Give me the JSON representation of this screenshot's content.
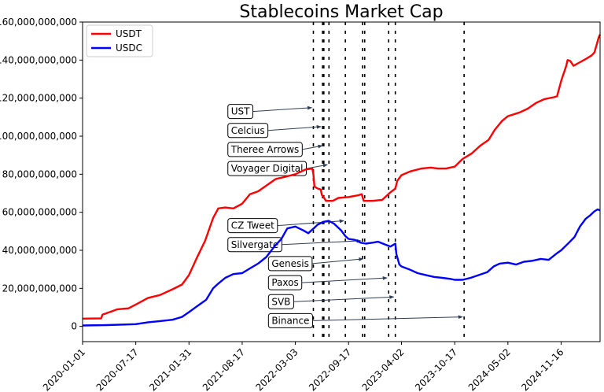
{
  "chart_data": {
    "type": "line",
    "title": "Stablecoins Market Cap",
    "xlabel": "",
    "ylabel": "",
    "x_range": [
      "2020-01-01",
      "2025-04-10"
    ],
    "ylim": [
      -8000000000,
      160000000000
    ],
    "y_ticks": [
      0,
      20000000000,
      40000000000,
      60000000000,
      80000000000,
      100000000000,
      120000000000,
      140000000000,
      160000000000
    ],
    "y_tick_labels": [
      "0",
      "20,000,000,000",
      "40,000,000,000",
      "60,000,000,000",
      "80,000,000,000",
      "100,000,000,000",
      "120,000,000,000",
      "140,000,000,000",
      "160,000,000,000"
    ],
    "x_ticks": [
      "2020-01-01",
      "2020-07-17",
      "2021-01-31",
      "2021-08-17",
      "2022-03-03",
      "2022-09-17",
      "2023-04-02",
      "2023-10-17",
      "2024-05-02",
      "2024-11-16"
    ],
    "legend": {
      "placement": "top-left"
    },
    "grid": false,
    "series": [
      {
        "name": "USDT",
        "color": "#ff0000",
        "points": [
          [
            "2020-01-01",
            4100000000.0
          ],
          [
            "2020-03-10",
            4200000000.0
          ],
          [
            "2020-03-15",
            6200000000.0
          ],
          [
            "2020-05-10",
            9000000000.0
          ],
          [
            "2020-06-20",
            9500000000.0
          ],
          [
            "2020-07-17",
            11500000000.0
          ],
          [
            "2020-09-01",
            15000000000.0
          ],
          [
            "2020-10-15",
            16500000000.0
          ],
          [
            "2020-12-01",
            19500000000.0
          ],
          [
            "2021-01-05",
            22000000000.0
          ],
          [
            "2021-01-31",
            27000000000.0
          ],
          [
            "2021-03-01",
            36000000000.0
          ],
          [
            "2021-04-01",
            45000000000.0
          ],
          [
            "2021-05-01",
            57000000000.0
          ],
          [
            "2021-05-20",
            62000000000.0
          ],
          [
            "2021-06-15",
            62500000000.0
          ],
          [
            "2021-07-15",
            62000000000.0
          ],
          [
            "2021-08-17",
            64500000000.0
          ],
          [
            "2021-09-15",
            69500000000.0
          ],
          [
            "2021-10-15",
            71000000000.0
          ],
          [
            "2021-11-15",
            74000000000.0
          ],
          [
            "2021-12-20",
            77500000000.0
          ],
          [
            "2022-01-20",
            78500000000.0
          ],
          [
            "2022-03-03",
            80000000000.0
          ],
          [
            "2022-04-10",
            82500000000.0
          ],
          [
            "2022-05-05",
            83000000000.0
          ],
          [
            "2022-05-09",
            80000000000.0
          ],
          [
            "2022-05-13",
            73500000000.0
          ],
          [
            "2022-05-25",
            72500000000.0
          ],
          [
            "2022-06-05",
            72000000000.0
          ],
          [
            "2022-06-10",
            69000000000.0
          ],
          [
            "2022-06-18",
            67500000000.0
          ],
          [
            "2022-06-25",
            66000000000.0
          ],
          [
            "2022-07-20",
            66000000000.0
          ],
          [
            "2022-08-10",
            67500000000.0
          ],
          [
            "2022-09-17",
            68000000000.0
          ],
          [
            "2022-10-25",
            69000000000.0
          ],
          [
            "2022-11-05",
            69500000000.0
          ],
          [
            "2022-11-12",
            66000000000.0
          ],
          [
            "2022-12-15",
            66000000000.0
          ],
          [
            "2023-01-20",
            66500000000.0
          ],
          [
            "2023-02-20",
            70500000000.0
          ],
          [
            "2023-03-10",
            72500000000.0
          ],
          [
            "2023-03-17",
            76500000000.0
          ],
          [
            "2023-04-02",
            79500000000.0
          ],
          [
            "2023-05-05",
            81500000000.0
          ],
          [
            "2023-06-15",
            83000000000.0
          ],
          [
            "2023-07-20",
            83500000000.0
          ],
          [
            "2023-08-15",
            83000000000.0
          ],
          [
            "2023-09-15",
            83000000000.0
          ],
          [
            "2023-10-17",
            84000000000.0
          ],
          [
            "2023-11-15",
            88000000000.0
          ],
          [
            "2023-12-20",
            91000000000.0
          ],
          [
            "2024-01-20",
            95000000000.0
          ],
          [
            "2024-02-20",
            98000000000.0
          ],
          [
            "2024-03-15",
            103500000000.0
          ],
          [
            "2024-04-10",
            108000000000.0
          ],
          [
            "2024-05-02",
            110500000000.0
          ],
          [
            "2024-06-15",
            112500000000.0
          ],
          [
            "2024-07-15",
            114500000000.0
          ],
          [
            "2024-08-15",
            117500000000.0
          ],
          [
            "2024-09-15",
            119500000000.0
          ],
          [
            "2024-10-20",
            120500000000.0
          ],
          [
            "2024-11-01",
            121000000000.0
          ],
          [
            "2024-11-16",
            129000000000.0
          ],
          [
            "2024-12-05",
            137000000000.0
          ],
          [
            "2024-12-10",
            140000000000.0
          ],
          [
            "2024-12-20",
            139500000000.0
          ],
          [
            "2025-01-01",
            137000000000.0
          ],
          [
            "2025-01-20",
            138500000000.0
          ],
          [
            "2025-02-15",
            140500000000.0
          ],
          [
            "2025-03-10",
            142500000000.0
          ],
          [
            "2025-03-20",
            144000000000.0
          ],
          [
            "2025-03-28",
            148000000000.0
          ],
          [
            "2025-04-05",
            152000000000.0
          ],
          [
            "2025-04-10",
            153500000000.0
          ]
        ]
      },
      {
        "name": "USDC",
        "color": "#0000ff",
        "points": [
          [
            "2020-01-01",
            500000000.0
          ],
          [
            "2020-04-01",
            700000000.0
          ],
          [
            "2020-07-17",
            1200000000.0
          ],
          [
            "2020-09-01",
            2200000000.0
          ],
          [
            "2020-10-15",
            2800000000.0
          ],
          [
            "2020-12-01",
            3500000000.0
          ],
          [
            "2021-01-05",
            5000000000.0
          ],
          [
            "2021-01-31",
            7500000000.0
          ],
          [
            "2021-03-01",
            10500000000.0
          ],
          [
            "2021-04-05",
            14000000000.0
          ],
          [
            "2021-05-01",
            20000000000.0
          ],
          [
            "2021-05-20",
            22500000000.0
          ],
          [
            "2021-06-15",
            25500000000.0
          ],
          [
            "2021-07-15",
            27500000000.0
          ],
          [
            "2021-08-17",
            28000000000.0
          ],
          [
            "2021-09-15",
            30500000000.0
          ],
          [
            "2021-10-15",
            33000000000.0
          ],
          [
            "2021-11-15",
            36500000000.0
          ],
          [
            "2021-12-15",
            42000000000.0
          ],
          [
            "2022-01-10",
            46000000000.0
          ],
          [
            "2022-02-01",
            51500000000.0
          ],
          [
            "2022-03-03",
            52500000000.0
          ],
          [
            "2022-04-01",
            50500000000.0
          ],
          [
            "2022-04-20",
            49000000000.0
          ],
          [
            "2022-05-10",
            51500000000.0
          ],
          [
            "2022-05-25",
            53500000000.0
          ],
          [
            "2022-06-15",
            55000000000.0
          ],
          [
            "2022-07-05",
            55500000000.0
          ],
          [
            "2022-07-25",
            54000000000.0
          ],
          [
            "2022-08-20",
            50500000000.0
          ],
          [
            "2022-09-05",
            47500000000.0
          ],
          [
            "2022-09-17",
            46000000000.0
          ],
          [
            "2022-10-10",
            45500000000.0
          ],
          [
            "2022-11-01",
            44000000000.0
          ],
          [
            "2022-11-20",
            43500000000.0
          ],
          [
            "2022-12-15",
            44000000000.0
          ],
          [
            "2023-01-05",
            44500000000.0
          ],
          [
            "2023-02-01",
            43000000000.0
          ],
          [
            "2023-02-20",
            42000000000.0
          ],
          [
            "2023-03-10",
            43500000000.0
          ],
          [
            "2023-03-14",
            38000000000.0
          ],
          [
            "2023-03-25",
            32500000000.0
          ],
          [
            "2023-04-02",
            31500000000.0
          ],
          [
            "2023-05-01",
            30000000000.0
          ],
          [
            "2023-06-01",
            28000000000.0
          ],
          [
            "2023-07-01",
            27000000000.0
          ],
          [
            "2023-08-01",
            26000000000.0
          ],
          [
            "2023-09-01",
            25500000000.0
          ],
          [
            "2023-10-01",
            25000000000.0
          ],
          [
            "2023-10-17",
            24500000000.0
          ],
          [
            "2023-11-15",
            24500000000.0
          ],
          [
            "2023-12-15",
            25500000000.0
          ],
          [
            "2024-01-15",
            27000000000.0
          ],
          [
            "2024-02-15",
            28500000000.0
          ],
          [
            "2024-03-10",
            31500000000.0
          ],
          [
            "2024-04-01",
            33000000000.0
          ],
          [
            "2024-05-02",
            33500000000.0
          ],
          [
            "2024-06-01",
            32500000000.0
          ],
          [
            "2024-07-01",
            34000000000.0
          ],
          [
            "2024-08-01",
            34500000000.0
          ],
          [
            "2024-09-01",
            35500000000.0
          ],
          [
            "2024-10-01",
            35000000000.0
          ],
          [
            "2024-11-01",
            38500000000.0
          ],
          [
            "2024-11-16",
            40000000000.0
          ],
          [
            "2024-12-15",
            44000000000.0
          ],
          [
            "2025-01-05",
            47000000000.0
          ],
          [
            "2025-01-25",
            52500000000.0
          ],
          [
            "2025-02-15",
            56500000000.0
          ],
          [
            "2025-03-05",
            58500000000.0
          ],
          [
            "2025-03-20",
            60500000000.0
          ],
          [
            "2025-04-01",
            61500000000.0
          ],
          [
            "2025-04-10",
            61000000000.0
          ]
        ]
      }
    ],
    "events": [
      {
        "label": "UST",
        "date": "2022-05-09",
        "label_y": 113000000000,
        "arrow_y": 115000000000
      },
      {
        "label": "Celcius",
        "date": "2022-06-12",
        "label_y": 103000000000,
        "arrow_y": 105000000000
      },
      {
        "label": "Theree Arrows",
        "date": "2022-06-17",
        "label_y": 93000000000,
        "arrow_y": 95000000000
      },
      {
        "label": "Voyager Digital",
        "date": "2022-07-06",
        "label_y": 83000000000,
        "arrow_y": 85000000000
      },
      {
        "label": "CZ Tweet",
        "date": "2022-09-05",
        "label_y": 53000000000,
        "arrow_y": 55500000000
      },
      {
        "label": "Silvergate",
        "date": "2022-11-08",
        "label_y": 43000000000,
        "arrow_y": 45000000000
      },
      {
        "label": "Genesis",
        "date": "2022-11-16",
        "label_y": 33000000000,
        "arrow_y": 35500000000
      },
      {
        "label": "Paxos",
        "date": "2023-02-13",
        "label_y": 23000000000,
        "arrow_y": 25500000000
      },
      {
        "label": "SVB",
        "date": "2023-03-10",
        "label_y": 13000000000,
        "arrow_y": 15500000000
      },
      {
        "label": "Binance",
        "date": "2023-11-21",
        "label_y": 3000000000,
        "arrow_y": 5000000000
      }
    ],
    "event_label_anchor_dates": {
      "group1": "2021-09-03",
      "group2": "2022-02-01"
    }
  }
}
